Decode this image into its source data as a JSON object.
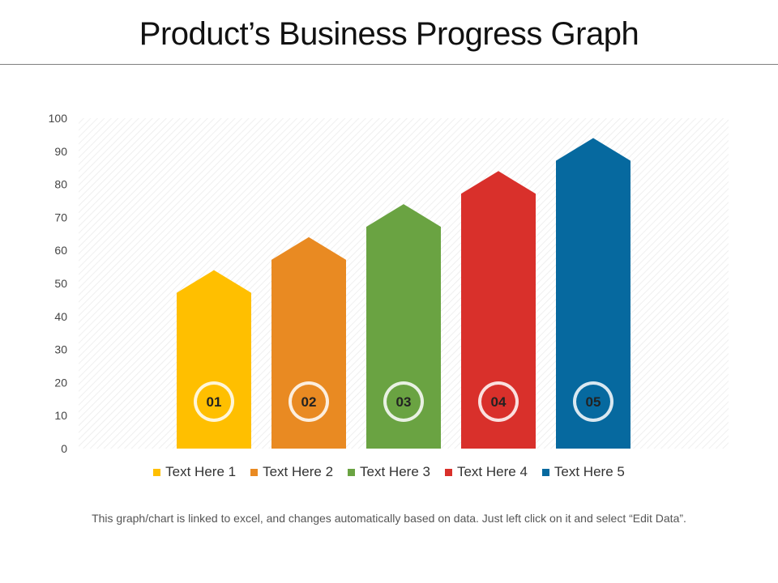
{
  "title": "Product’s Business Progress Graph",
  "footnote": "This graph/chart is linked to excel, and changes automatically based on data. Just left click on it and select “Edit Data”.",
  "chart_data": {
    "type": "bar",
    "categories": [
      "Text Here 1",
      "Text Here 2",
      "Text Here 3",
      "Text Here 4",
      "Text Here 5"
    ],
    "values": [
      54,
      64,
      74,
      84,
      94
    ],
    "badges": [
      "01",
      "02",
      "03",
      "04",
      "05"
    ],
    "colors": [
      "#ffbf00",
      "#e98a22",
      "#6aa342",
      "#d9302b",
      "#06699f"
    ],
    "ylim": [
      0,
      100
    ],
    "yticks": [
      0,
      10,
      20,
      30,
      40,
      50,
      60,
      70,
      80,
      90,
      100
    ],
    "grid": false,
    "legend_position": "bottom",
    "xlabel": "",
    "ylabel": ""
  }
}
